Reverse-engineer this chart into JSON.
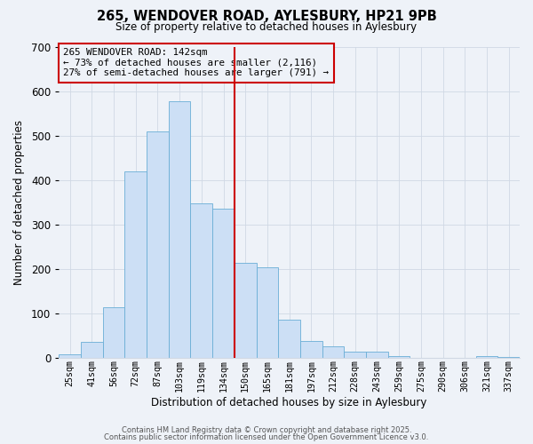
{
  "title": "265, WENDOVER ROAD, AYLESBURY, HP21 9PB",
  "subtitle": "Size of property relative to detached houses in Aylesbury",
  "xlabel": "Distribution of detached houses by size in Aylesbury",
  "ylabel": "Number of detached properties",
  "bar_labels": [
    "25sqm",
    "41sqm",
    "56sqm",
    "72sqm",
    "87sqm",
    "103sqm",
    "119sqm",
    "134sqm",
    "150sqm",
    "165sqm",
    "181sqm",
    "197sqm",
    "212sqm",
    "228sqm",
    "243sqm",
    "259sqm",
    "275sqm",
    "290sqm",
    "306sqm",
    "321sqm",
    "337sqm"
  ],
  "bar_values": [
    8,
    35,
    113,
    420,
    510,
    578,
    348,
    335,
    213,
    203,
    85,
    37,
    25,
    13,
    13,
    3,
    0,
    0,
    0,
    3,
    2
  ],
  "bar_color": "#ccdff5",
  "bar_edge_color": "#6aaed6",
  "grid_color": "#d0d8e4",
  "vline_x_index": 8.0,
  "vline_color": "#cc0000",
  "annotation_text_line1": "265 WENDOVER ROAD: 142sqm",
  "annotation_text_line2": "← 73% of detached houses are smaller (2,116)",
  "annotation_text_line3": "27% of semi-detached houses are larger (791) →",
  "annotation_box_edgecolor": "#cc0000",
  "ylim_max": 700,
  "yticks": [
    0,
    100,
    200,
    300,
    400,
    500,
    600,
    700
  ],
  "footer1": "Contains HM Land Registry data © Crown copyright and database right 2025.",
  "footer2": "Contains public sector information licensed under the Open Government Licence v3.0.",
  "bg_color": "#eef2f8"
}
